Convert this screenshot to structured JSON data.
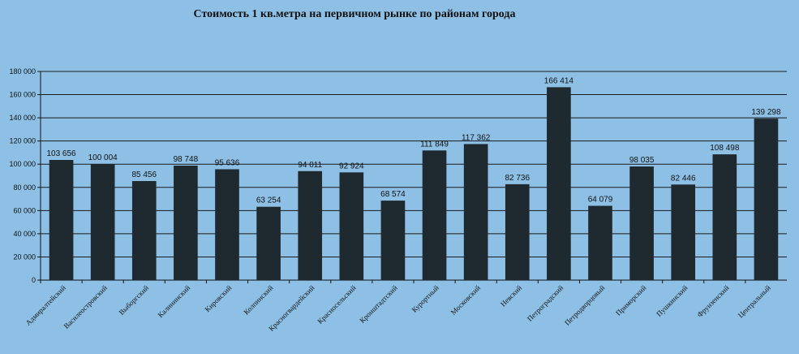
{
  "chart_data": {
    "type": "bar",
    "title": "Стоимость 1 кв.метра  на  первичном  рынке по районам  города",
    "categories": [
      "Адмиралтейский",
      "Василеостровский",
      "Выборгский",
      "Калининский",
      "Кировский",
      "Колпинский",
      "Красногвардейский",
      "Красносельский",
      "Кронштадтский",
      "Курортный",
      "Московский",
      "Невский",
      "Петроградский",
      "Петродворцовый",
      "Приморский",
      "Пушкинский",
      "Фрунзенский",
      "Центральный"
    ],
    "values": [
      103656,
      100004,
      85456,
      98748,
      95636,
      63254,
      94011,
      92924,
      68574,
      111849,
      117362,
      82736,
      166414,
      64079,
      98035,
      82446,
      108498,
      139298
    ],
    "value_labels": [
      "103 656",
      "100 004",
      "85 456",
      "98 748",
      "95 636",
      "63 254",
      "94 011",
      "92 924",
      "68 574",
      "111 849",
      "117 362",
      "82 736",
      "166 414",
      "64 079",
      "98 035",
      "82 446",
      "108 498",
      "139 298"
    ],
    "ylim": [
      0,
      180000
    ],
    "yticks": [
      0,
      20000,
      40000,
      60000,
      80000,
      100000,
      120000,
      140000,
      160000,
      180000
    ],
    "ytick_labels": [
      "0",
      "20 000",
      "40 000",
      "60 000",
      "80 000",
      "100 000",
      "120 000",
      "140 000",
      "160 000",
      "180 000"
    ],
    "xlabel": "",
    "ylabel": "",
    "grid": true,
    "bar_color": "#1f2a30",
    "grid_color": "#1a1a1a"
  }
}
